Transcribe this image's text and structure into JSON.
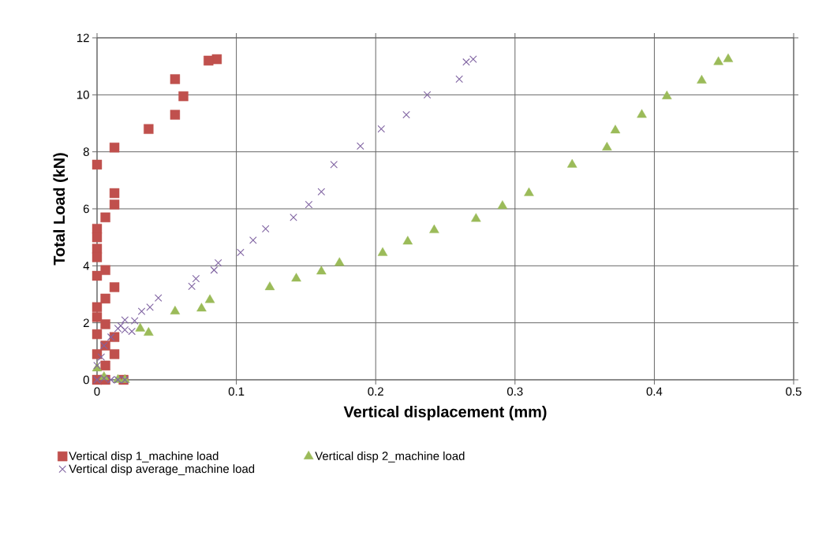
{
  "chart_data": {
    "type": "scatter",
    "xlabel": "Vertical displacement (mm)",
    "ylabel": "Total Load (kN)",
    "xlim": [
      0,
      0.5
    ],
    "ylim": [
      0,
      12
    ],
    "xticks": [
      0,
      0.1,
      0.2,
      0.3,
      0.4,
      0.5
    ],
    "yticks": [
      0,
      2,
      4,
      6,
      8,
      10,
      12
    ],
    "grid": true,
    "legend": "bottom",
    "series": [
      {
        "name": "Vertical disp 1_machine load",
        "color": "#c0504d",
        "marker": "square",
        "x": [
          0.086,
          0.08,
          0.056,
          0.062,
          0.056,
          0.037,
          0.0125,
          0,
          0.0125,
          0.0125,
          0.006,
          0,
          0,
          0,
          0,
          0,
          0.006,
          0.0125,
          0.006,
          0,
          0,
          0.006,
          0.0125,
          0,
          0.006,
          0,
          0.0125,
          0.006,
          0.019,
          0.006,
          0
        ],
        "values": [
          11.25,
          11.2,
          10.55,
          9.95,
          9.3,
          8.8,
          8.15,
          7.55,
          6.55,
          6.15,
          5.7,
          5.3,
          5.0,
          4.6,
          4.3,
          3.65,
          3.85,
          3.25,
          2.85,
          2.55,
          2.2,
          1.95,
          1.5,
          1.6,
          1.2,
          0.9,
          0.9,
          0.5,
          0,
          0,
          0
        ]
      },
      {
        "name": "Vertical disp 2_machine load",
        "color": "#9bbb59",
        "marker": "triangle",
        "x": [
          0.453,
          0.446,
          0.434,
          0.409,
          0.391,
          0.372,
          0.366,
          0.341,
          0.31,
          0.291,
          0.272,
          0.242,
          0.223,
          0.205,
          0.174,
          0.161,
          0.143,
          0.124,
          0.081,
          0.075,
          0.056,
          0.037,
          0.031,
          0.0,
          0.005,
          0.015,
          0.02
        ],
        "values": [
          11.25,
          11.15,
          10.5,
          9.95,
          9.3,
          8.75,
          8.15,
          7.55,
          6.55,
          6.1,
          5.65,
          5.25,
          4.85,
          4.45,
          4.1,
          3.8,
          3.55,
          3.25,
          2.8,
          2.5,
          2.4,
          1.65,
          1.8,
          0.4,
          0.1,
          0,
          0
        ]
      },
      {
        "name": "Vertical disp average_machine load",
        "color": "#8064a2",
        "marker": "cross",
        "x": [
          0.27,
          0.265,
          0.26,
          0.237,
          0.222,
          0.204,
          0.189,
          0.17,
          0.161,
          0.152,
          0.141,
          0.121,
          0.112,
          0.103,
          0.087,
          0.084,
          0.071,
          0.068,
          0.044,
          0.038,
          0.032,
          0.027,
          0.02,
          0.017,
          0.02,
          0.025,
          0.015,
          0.01,
          0.005,
          0.003,
          0.0,
          0.005,
          0.01,
          0.015,
          0.02,
          0.0
        ],
        "values": [
          11.25,
          11.15,
          10.55,
          10.0,
          9.3,
          8.8,
          8.2,
          7.55,
          6.6,
          6.15,
          5.7,
          5.3,
          4.9,
          4.47,
          4.1,
          3.85,
          3.55,
          3.28,
          2.87,
          2.55,
          2.4,
          2.07,
          2.1,
          1.9,
          1.75,
          1.7,
          1.8,
          1.5,
          1.2,
          0.8,
          0.5,
          0.05,
          0,
          0,
          0,
          0
        ]
      }
    ]
  }
}
